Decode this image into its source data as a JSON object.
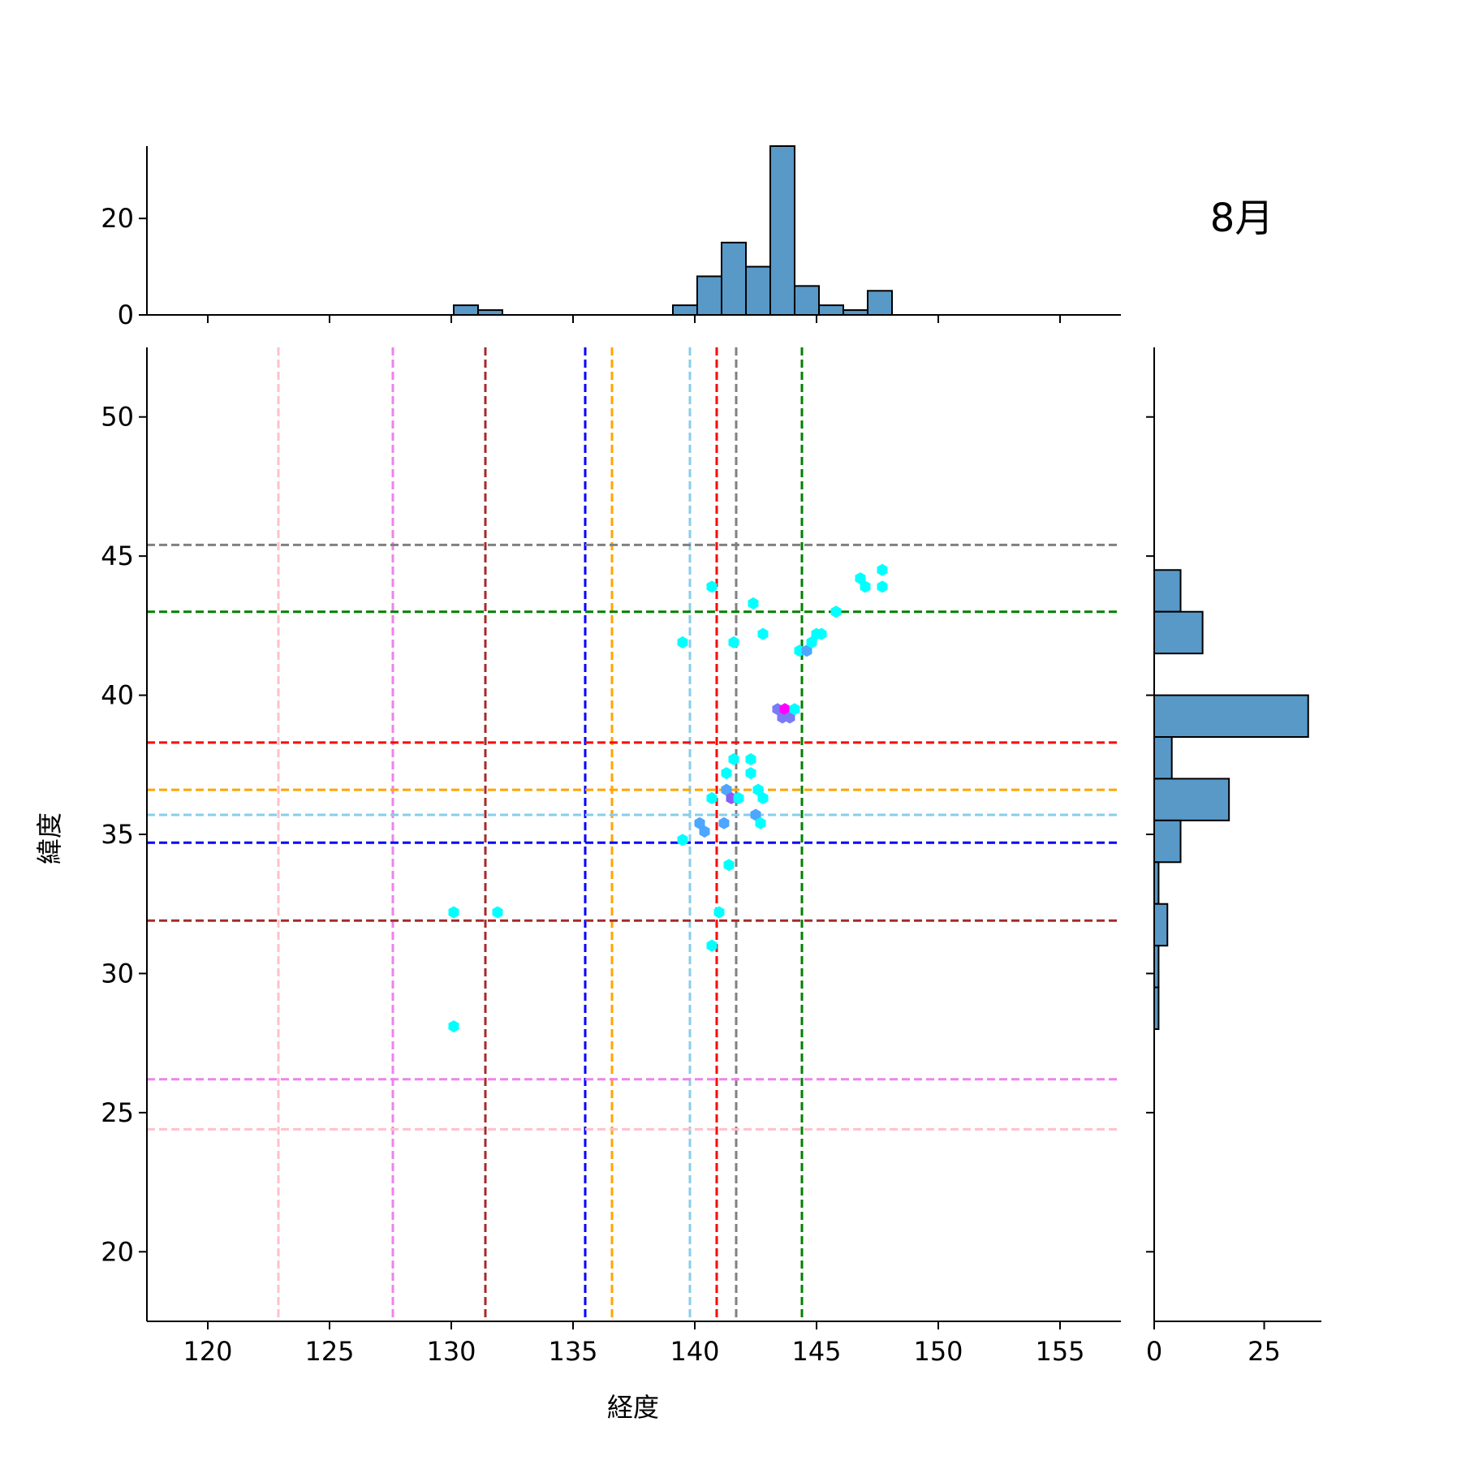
{
  "chart_data": {
    "type": "jointplot-hexbin",
    "annotation": "8月",
    "xlabel": "経度",
    "ylabel": "緯度",
    "xlim": [
      117.5,
      157.5
    ],
    "ylim": [
      17.5,
      52.5
    ],
    "xticks": [
      120,
      125,
      130,
      135,
      140,
      145,
      150,
      155
    ],
    "yticks": [
      20,
      25,
      30,
      35,
      40,
      45,
      50
    ],
    "top_hist": {
      "ylim": [
        0,
        35
      ],
      "yticks": [
        0,
        20
      ],
      "color": "#5899c8",
      "bins": [
        {
          "x0": 130.1,
          "x1": 131.1,
          "count": 2
        },
        {
          "x0": 131.1,
          "x1": 132.1,
          "count": 1
        },
        {
          "x0": 139.1,
          "x1": 140.1,
          "count": 2
        },
        {
          "x0": 140.1,
          "x1": 141.1,
          "count": 8
        },
        {
          "x0": 141.1,
          "x1": 142.1,
          "count": 15
        },
        {
          "x0": 142.1,
          "x1": 143.1,
          "count": 10
        },
        {
          "x0": 143.1,
          "x1": 144.1,
          "count": 35
        },
        {
          "x0": 144.1,
          "x1": 145.1,
          "count": 6
        },
        {
          "x0": 145.1,
          "x1": 146.1,
          "count": 2
        },
        {
          "x0": 146.1,
          "x1": 147.1,
          "count": 1
        },
        {
          "x0": 147.1,
          "x1": 148.1,
          "count": 5
        }
      ]
    },
    "right_hist": {
      "xlim": [
        0,
        38
      ],
      "xticks": [
        0,
        25
      ],
      "color": "#5899c8",
      "bins": [
        {
          "y0": 43.0,
          "y1": 44.5,
          "count": 6
        },
        {
          "y0": 41.5,
          "y1": 43.0,
          "count": 11
        },
        {
          "y0": 38.5,
          "y1": 40.0,
          "count": 35
        },
        {
          "y0": 37.0,
          "y1": 38.5,
          "count": 4
        },
        {
          "y0": 35.5,
          "y1": 37.0,
          "count": 17
        },
        {
          "y0": 34.0,
          "y1": 35.5,
          "count": 6
        },
        {
          "y0": 32.5,
          "y1": 34.0,
          "count": 1
        },
        {
          "y0": 31.0,
          "y1": 32.5,
          "count": 3
        },
        {
          "y0": 29.5,
          "y1": 31.0,
          "count": 1
        },
        {
          "y0": 28.0,
          "y1": 29.5,
          "count": 1
        }
      ]
    },
    "vlines": [
      {
        "x": 122.9,
        "color": "#ffc0cb"
      },
      {
        "x": 127.6,
        "color": "#ee82ee"
      },
      {
        "x": 131.4,
        "color": "#a52a2a"
      },
      {
        "x": 135.5,
        "color": "#0000ff"
      },
      {
        "x": 136.6,
        "color": "#ffa500"
      },
      {
        "x": 139.8,
        "color": "#87ceeb"
      },
      {
        "x": 140.9,
        "color": "#ff0000"
      },
      {
        "x": 141.7,
        "color": "#808080"
      },
      {
        "x": 144.4,
        "color": "#008000"
      }
    ],
    "hlines": [
      {
        "y": 45.4,
        "color": "#808080"
      },
      {
        "y": 43.0,
        "color": "#008000"
      },
      {
        "y": 38.3,
        "color": "#ff0000"
      },
      {
        "y": 36.6,
        "color": "#ffa500"
      },
      {
        "y": 35.7,
        "color": "#87ceeb"
      },
      {
        "y": 34.7,
        "color": "#0000ff"
      },
      {
        "y": 31.9,
        "color": "#a52a2a"
      },
      {
        "y": 26.2,
        "color": "#ee82ee"
      },
      {
        "y": 24.4,
        "color": "#ffc0cb"
      }
    ],
    "hexbins": [
      {
        "x": 140.7,
        "y": 43.9,
        "color": "#00ffff"
      },
      {
        "x": 142.4,
        "y": 43.3,
        "color": "#00ffff"
      },
      {
        "x": 146.8,
        "y": 44.2,
        "color": "#00ffff"
      },
      {
        "x": 147.0,
        "y": 43.9,
        "color": "#00ffff"
      },
      {
        "x": 147.7,
        "y": 44.5,
        "color": "#00ffff"
      },
      {
        "x": 147.7,
        "y": 43.9,
        "color": "#00ffff"
      },
      {
        "x": 145.8,
        "y": 43.0,
        "color": "#00ffff"
      },
      {
        "x": 139.5,
        "y": 41.9,
        "color": "#00ffff"
      },
      {
        "x": 141.6,
        "y": 41.9,
        "color": "#00ffff"
      },
      {
        "x": 142.8,
        "y": 42.2,
        "color": "#00ffff"
      },
      {
        "x": 144.3,
        "y": 41.6,
        "color": "#00ffff"
      },
      {
        "x": 144.6,
        "y": 41.6,
        "color": "#4da6ff"
      },
      {
        "x": 144.8,
        "y": 41.9,
        "color": "#00ffff"
      },
      {
        "x": 145.0,
        "y": 42.2,
        "color": "#00ffff"
      },
      {
        "x": 145.2,
        "y": 42.2,
        "color": "#00ffff"
      },
      {
        "x": 143.4,
        "y": 39.5,
        "color": "#7b7bf5"
      },
      {
        "x": 143.6,
        "y": 39.2,
        "color": "#7b7bf5"
      },
      {
        "x": 143.7,
        "y": 39.5,
        "color": "#ff00ff"
      },
      {
        "x": 143.9,
        "y": 39.2,
        "color": "#7b7bf5"
      },
      {
        "x": 144.1,
        "y": 39.5,
        "color": "#00ffff"
      },
      {
        "x": 141.6,
        "y": 37.7,
        "color": "#00ffff"
      },
      {
        "x": 142.3,
        "y": 37.7,
        "color": "#00ffff"
      },
      {
        "x": 141.3,
        "y": 37.2,
        "color": "#00ffff"
      },
      {
        "x": 142.3,
        "y": 37.2,
        "color": "#00ffff"
      },
      {
        "x": 141.3,
        "y": 36.6,
        "color": "#4da6ff"
      },
      {
        "x": 142.6,
        "y": 36.6,
        "color": "#00ffff"
      },
      {
        "x": 140.7,
        "y": 36.3,
        "color": "#00ffff"
      },
      {
        "x": 141.5,
        "y": 36.3,
        "color": "#8a5cf5"
      },
      {
        "x": 141.8,
        "y": 36.3,
        "color": "#00ffff"
      },
      {
        "x": 142.8,
        "y": 36.3,
        "color": "#00ffff"
      },
      {
        "x": 140.2,
        "y": 35.4,
        "color": "#4da6ff"
      },
      {
        "x": 140.4,
        "y": 35.1,
        "color": "#4da6ff"
      },
      {
        "x": 141.2,
        "y": 35.4,
        "color": "#4da6ff"
      },
      {
        "x": 142.5,
        "y": 35.7,
        "color": "#4da6ff"
      },
      {
        "x": 142.7,
        "y": 35.4,
        "color": "#00ffff"
      },
      {
        "x": 139.5,
        "y": 34.8,
        "color": "#00ffff"
      },
      {
        "x": 141.4,
        "y": 33.9,
        "color": "#00ffff"
      },
      {
        "x": 130.1,
        "y": 32.2,
        "color": "#00ffff"
      },
      {
        "x": 131.9,
        "y": 32.2,
        "color": "#00ffff"
      },
      {
        "x": 141.0,
        "y": 32.2,
        "color": "#00ffff"
      },
      {
        "x": 140.7,
        "y": 31.0,
        "color": "#00ffff"
      },
      {
        "x": 130.1,
        "y": 28.1,
        "color": "#00ffff"
      }
    ]
  }
}
